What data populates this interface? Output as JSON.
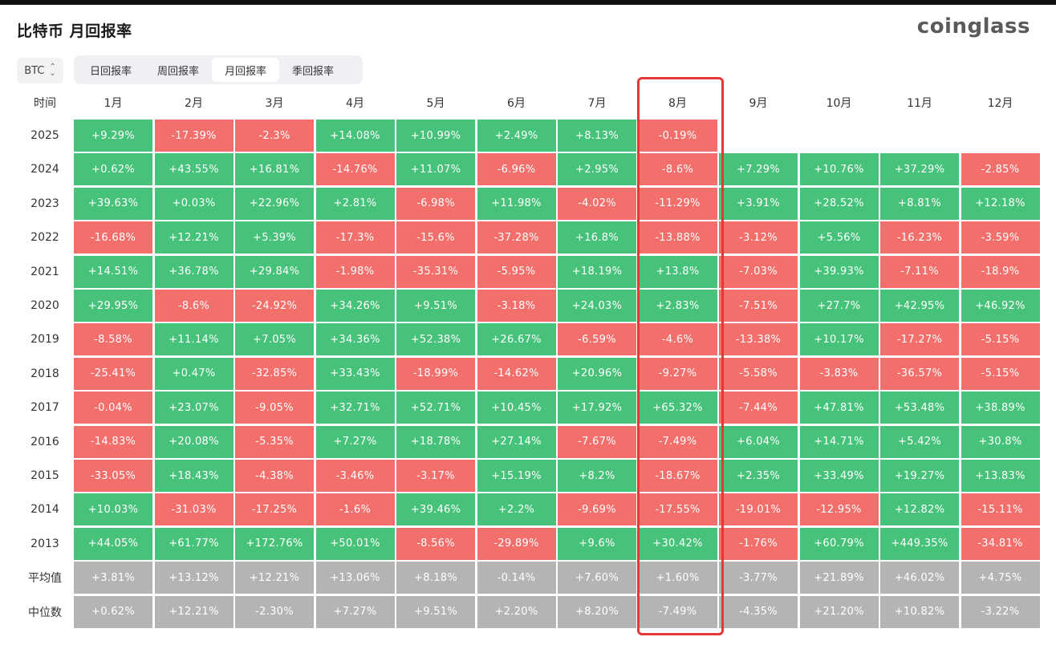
{
  "header": {
    "title": "比特币 月回报率",
    "logo": "coinglass"
  },
  "coin_selector": {
    "value": "BTC",
    "icon": "updown-chevron-icon"
  },
  "tabs": [
    {
      "label": "日回报率",
      "active": false
    },
    {
      "label": "周回报率",
      "active": false
    },
    {
      "label": "月回报率",
      "active": true
    },
    {
      "label": "季回报率",
      "active": false
    }
  ],
  "table": {
    "corner_header": "时间",
    "months": [
      "1月",
      "2月",
      "3月",
      "4月",
      "5月",
      "6月",
      "7月",
      "8月",
      "9月",
      "10月",
      "11月",
      "12月"
    ],
    "highlighted_month": "8月",
    "rows": [
      {
        "year": "2025",
        "values": [
          "+9.29%",
          "-17.39%",
          "-2.3%",
          "+14.08%",
          "+10.99%",
          "+2.49%",
          "+8.13%",
          "-0.19%",
          "",
          "",
          "",
          ""
        ]
      },
      {
        "year": "2024",
        "values": [
          "+0.62%",
          "+43.55%",
          "+16.81%",
          "-14.76%",
          "+11.07%",
          "-6.96%",
          "+2.95%",
          "-8.6%",
          "+7.29%",
          "+10.76%",
          "+37.29%",
          "-2.85%"
        ]
      },
      {
        "year": "2023",
        "values": [
          "+39.63%",
          "+0.03%",
          "+22.96%",
          "+2.81%",
          "-6.98%",
          "+11.98%",
          "-4.02%",
          "-11.29%",
          "+3.91%",
          "+28.52%",
          "+8.81%",
          "+12.18%"
        ]
      },
      {
        "year": "2022",
        "values": [
          "-16.68%",
          "+12.21%",
          "+5.39%",
          "-17.3%",
          "-15.6%",
          "-37.28%",
          "+16.8%",
          "-13.88%",
          "-3.12%",
          "+5.56%",
          "-16.23%",
          "-3.59%"
        ]
      },
      {
        "year": "2021",
        "values": [
          "+14.51%",
          "+36.78%",
          "+29.84%",
          "-1.98%",
          "-35.31%",
          "-5.95%",
          "+18.19%",
          "+13.8%",
          "-7.03%",
          "+39.93%",
          "-7.11%",
          "-18.9%"
        ]
      },
      {
        "year": "2020",
        "values": [
          "+29.95%",
          "-8.6%",
          "-24.92%",
          "+34.26%",
          "+9.51%",
          "-3.18%",
          "+24.03%",
          "+2.83%",
          "-7.51%",
          "+27.7%",
          "+42.95%",
          "+46.92%"
        ]
      },
      {
        "year": "2019",
        "values": [
          "-8.58%",
          "+11.14%",
          "+7.05%",
          "+34.36%",
          "+52.38%",
          "+26.67%",
          "-6.59%",
          "-4.6%",
          "-13.38%",
          "+10.17%",
          "-17.27%",
          "-5.15%"
        ]
      },
      {
        "year": "2018",
        "values": [
          "-25.41%",
          "+0.47%",
          "-32.85%",
          "+33.43%",
          "-18.99%",
          "-14.62%",
          "+20.96%",
          "-9.27%",
          "-5.58%",
          "-3.83%",
          "-36.57%",
          "-5.15%"
        ]
      },
      {
        "year": "2017",
        "values": [
          "-0.04%",
          "+23.07%",
          "-9.05%",
          "+32.71%",
          "+52.71%",
          "+10.45%",
          "+17.92%",
          "+65.32%",
          "-7.44%",
          "+47.81%",
          "+53.48%",
          "+38.89%"
        ]
      },
      {
        "year": "2016",
        "values": [
          "-14.83%",
          "+20.08%",
          "-5.35%",
          "+7.27%",
          "+18.78%",
          "+27.14%",
          "-7.67%",
          "-7.49%",
          "+6.04%",
          "+14.71%",
          "+5.42%",
          "+30.8%"
        ]
      },
      {
        "year": "2015",
        "values": [
          "-33.05%",
          "+18.43%",
          "-4.38%",
          "-3.46%",
          "-3.17%",
          "+15.19%",
          "+8.2%",
          "-18.67%",
          "+2.35%",
          "+33.49%",
          "+19.27%",
          "+13.83%"
        ]
      },
      {
        "year": "2014",
        "values": [
          "+10.03%",
          "-31.03%",
          "-17.25%",
          "-1.6%",
          "+39.46%",
          "+2.2%",
          "-9.69%",
          "-17.55%",
          "-19.01%",
          "-12.95%",
          "+12.82%",
          "-15.11%"
        ]
      },
      {
        "year": "2013",
        "values": [
          "+44.05%",
          "+61.77%",
          "+172.76%",
          "+50.01%",
          "-8.56%",
          "-29.89%",
          "+9.6%",
          "+30.42%",
          "-1.76%",
          "+60.79%",
          "+449.35%",
          "-34.81%"
        ]
      }
    ],
    "stats": [
      {
        "label": "平均值",
        "values": [
          "+3.81%",
          "+13.12%",
          "+12.21%",
          "+13.06%",
          "+8.18%",
          "-0.14%",
          "+7.60%",
          "+1.60%",
          "-3.77%",
          "+21.89%",
          "+46.02%",
          "+4.75%"
        ]
      },
      {
        "label": "中位数",
        "values": [
          "+0.62%",
          "+12.21%",
          "-2.30%",
          "+7.27%",
          "+9.51%",
          "+2.20%",
          "+8.20%",
          "-7.49%",
          "-4.35%",
          "+21.20%",
          "+10.82%",
          "-3.22%"
        ]
      }
    ]
  },
  "colors": {
    "positive": "#46c27a",
    "negative": "#f36f6c",
    "stat": "#b4b4b4",
    "highlight_border": "#e53935"
  }
}
